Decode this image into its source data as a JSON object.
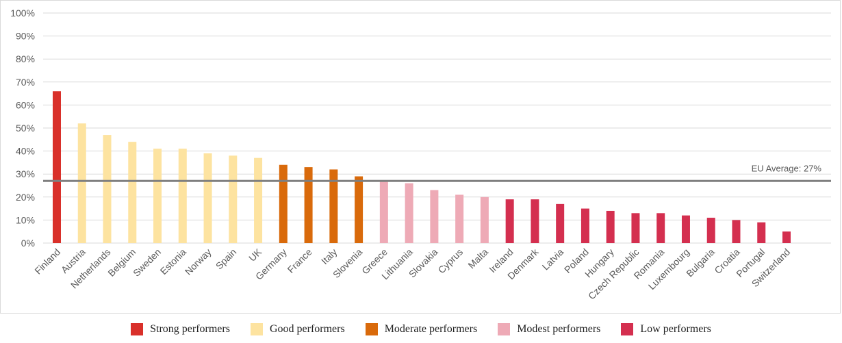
{
  "chart_data": {
    "type": "bar",
    "yticks": [
      "0%",
      "10%",
      "20%",
      "30%",
      "40%",
      "50%",
      "60%",
      "70%",
      "80%",
      "90%",
      "100%"
    ],
    "ylim": [
      0,
      100
    ],
    "grid": true,
    "categories": [
      "Finland",
      "Austria",
      "Netherlands",
      "Belgium",
      "Sweden",
      "Estonia",
      "Norway",
      "Spain",
      "UK",
      "Germany",
      "France",
      "Italy",
      "Slovenia",
      "Greece",
      "Lithuania",
      "Slovakia",
      "Cyprus",
      "Malta",
      "Ireland",
      "Denmark",
      "Latvia",
      "Poland",
      "Hungary",
      "Czech Republic",
      "Romania",
      "Luxembourg",
      "Bulgaria",
      "Croatia",
      "Portugal",
      "Switzerland"
    ],
    "values": [
      66,
      52,
      47,
      44,
      41,
      41,
      39,
      38,
      37,
      34,
      33,
      32,
      29,
      27,
      26,
      23,
      21,
      20,
      19,
      19,
      17,
      15,
      14,
      13,
      13,
      12,
      11,
      10,
      9,
      5
    ],
    "groups": [
      "Strong performers",
      "Good performers",
      "Good performers",
      "Good performers",
      "Good performers",
      "Good performers",
      "Good performers",
      "Good performers",
      "Good performers",
      "Moderate performers",
      "Moderate performers",
      "Moderate performers",
      "Moderate performers",
      "Modest performers",
      "Modest performers",
      "Modest performers",
      "Modest performers",
      "Modest performers",
      "Low performers",
      "Low performers",
      "Low performers",
      "Low performers",
      "Low performers",
      "Low performers",
      "Low performers",
      "Low performers",
      "Low performers",
      "Low performers",
      "Low performers",
      "Low performers"
    ],
    "reference_line": {
      "value": 27,
      "label": "EU Average:  27%",
      "color": "#7f7f7f"
    },
    "legend": [
      {
        "label": "Strong performers",
        "color": "#d9302a"
      },
      {
        "label": "Good performers",
        "color": "#fde3a0"
      },
      {
        "label": "Moderate performers",
        "color": "#d96a0b"
      },
      {
        "label": "Modest performers",
        "color": "#eeaab6"
      },
      {
        "label": "Low performers",
        "color": "#d42f4f"
      }
    ],
    "legend_position": "bottom"
  }
}
